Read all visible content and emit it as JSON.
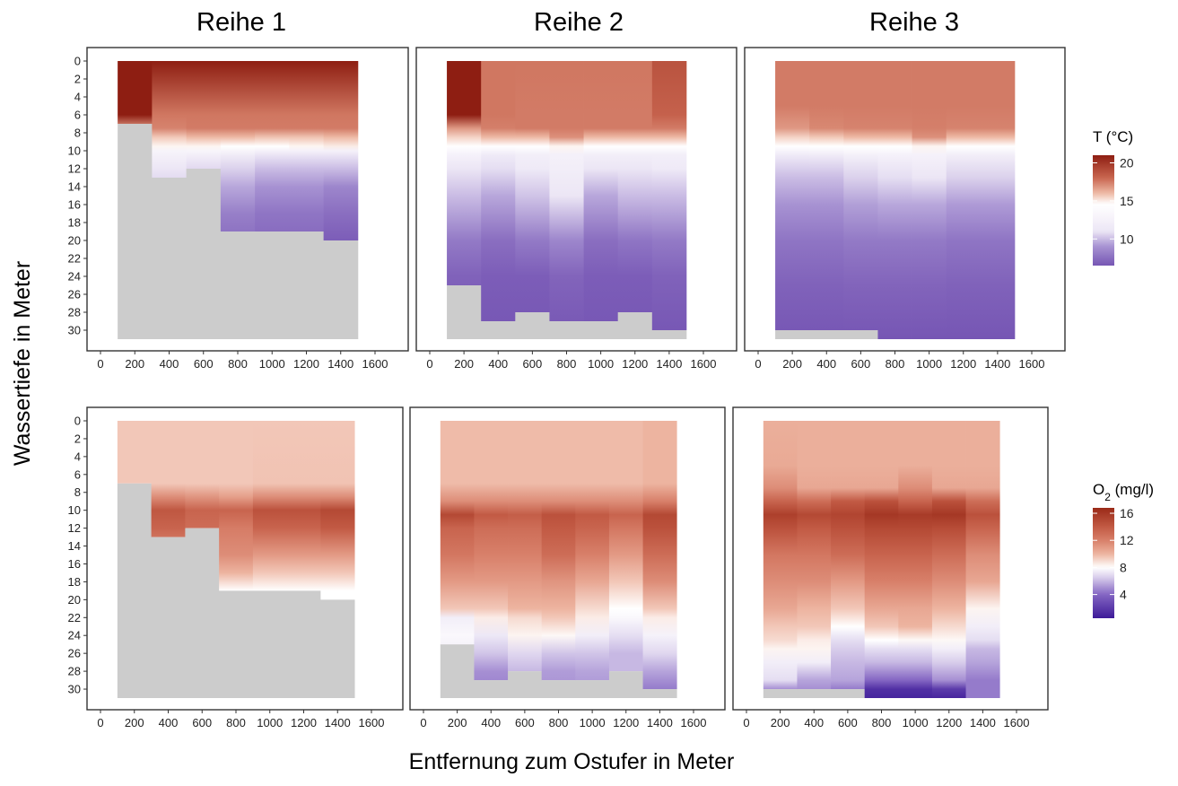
{
  "figure": {
    "facet_titles": [
      "Reihe 1",
      "Reihe 2",
      "Reihe 3"
    ],
    "xlabel": "Entfernung zum Ostufer in Meter",
    "ylabel": "Wassertiefe in Meter",
    "na_color": "#cccccc"
  },
  "chart_data": [
    {
      "type": "heatmap",
      "variable": "T",
      "unit": "°C",
      "facets": [
        "Reihe 1",
        "Reihe 2",
        "Reihe 3"
      ],
      "x_ticks": [
        0,
        200,
        400,
        600,
        800,
        1000,
        1200,
        1400,
        1600
      ],
      "y_ticks": [
        0,
        2,
        4,
        6,
        8,
        10,
        12,
        14,
        16,
        18,
        20,
        22,
        24,
        26,
        28,
        30
      ],
      "xlim": [
        0,
        1600
      ],
      "ylim": [
        0,
        31
      ],
      "y_reversed": true,
      "x_columns": [
        200,
        400,
        600,
        800,
        1000,
        1200,
        1400
      ],
      "column_width": 200,
      "legend": {
        "title": "T (°C)",
        "ticks": [
          20,
          15,
          10
        ],
        "range": [
          6.5,
          21
        ],
        "colors": [
          {
            "v": 6.5,
            "c": "#7656b4"
          },
          {
            "v": 9,
            "c": "#a792d2"
          },
          {
            "v": 11,
            "c": "#ece6f5"
          },
          {
            "v": 13,
            "c": "#f8f5fb"
          },
          {
            "v": 14.6,
            "c": "#ffffff"
          },
          {
            "v": 16,
            "c": "#eebaa6"
          },
          {
            "v": 18,
            "c": "#c96650"
          },
          {
            "v": 21,
            "c": "#8e1e12"
          }
        ]
      },
      "panels": [
        {
          "facet": "Reihe 1",
          "max_depth": [
            7,
            13,
            12,
            19,
            19,
            19,
            20
          ],
          "profile": [
            [
              0,
              21,
              21,
              21,
              21,
              21,
              21,
              21,
              21
            ],
            [
              6,
              21,
              21,
              17.6,
              17.6,
              17.6,
              17.6,
              17.6,
              17.6
            ],
            [
              7.5,
              21,
              16.8,
              17.3,
              17.5,
              17.5,
              17.5,
              17.5,
              17.5
            ],
            [
              8.5,
              21,
              15.5,
              15.7,
              16,
              16,
              15.8,
              15.8,
              16
            ],
            [
              9.5,
              21,
              14.6,
              14.8,
              14.8,
              14.6,
              14.6,
              14.8,
              15
            ],
            [
              10,
              21,
              12,
              12.8,
              13,
              12.8,
              12.5,
              12.5,
              12.5
            ],
            [
              12,
              21,
              10.5,
              11,
              10.7,
              10.5,
              10,
              10,
              10
            ],
            [
              14,
              21,
              10,
              10.5,
              10,
              9.5,
              9,
              9,
              8.5
            ],
            [
              17,
              21,
              9,
              10,
              8.6,
              8.2,
              7.8,
              7.8,
              7.5
            ],
            [
              20,
              21,
              9,
              9.5,
              7.8,
              7.5,
              7.3,
              7.3,
              6.8
            ],
            [
              31,
              21,
              8,
              8,
              7.5,
              7,
              7,
              7,
              6.5
            ]
          ]
        },
        {
          "facet": "Reihe 2",
          "max_depth": [
            25,
            29,
            28,
            29,
            29,
            28,
            30
          ],
          "profile": [
            [
              0,
              21,
              21,
              17.6,
              17.6,
              17.6,
              17.6,
              17.6,
              18.8
            ],
            [
              6,
              21,
              21,
              17.6,
              17.5,
              17.5,
              17.5,
              17.5,
              18.2
            ],
            [
              7.5,
              21,
              16.8,
              17.4,
              17.5,
              17.5,
              17.5,
              17.5,
              17.5
            ],
            [
              8.5,
              21,
              15.5,
              16,
              16,
              17,
              16,
              16,
              16
            ],
            [
              9.5,
              21,
              14.5,
              14.5,
              14.5,
              14.8,
              14.5,
              14.5,
              14.5
            ],
            [
              10.5,
              21,
              12.5,
              11.5,
              12,
              12.3,
              12,
              12,
              12
            ],
            [
              12,
              21,
              11,
              10.8,
              11.5,
              12,
              11,
              11,
              11.5
            ],
            [
              15,
              21,
              10,
              9.5,
              10.2,
              11,
              9.5,
              10,
              10
            ],
            [
              20,
              21,
              8,
              7.5,
              8,
              8.5,
              7.5,
              7.8,
              8
            ],
            [
              24,
              21,
              7,
              6.8,
              6.8,
              7.1,
              6.8,
              6.8,
              7
            ],
            [
              31,
              21,
              6.5,
              6.5,
              6.5,
              6.5,
              6.5,
              6.5,
              6.5
            ]
          ]
        },
        {
          "facet": "Reihe 3",
          "max_depth": [
            30,
            30,
            30,
            31,
            31,
            31,
            31
          ],
          "profile": [
            [
              0,
              17.5,
              17.5,
              17.5,
              17.5,
              17.5,
              17.5,
              17.5,
              17.5
            ],
            [
              5,
              17.5,
              17.5,
              17.5,
              17.5,
              17.5,
              17.5,
              17.5,
              17.5
            ],
            [
              7.5,
              17.5,
              16.8,
              17.2,
              17.3,
              17.3,
              17.4,
              17.3,
              17.3
            ],
            [
              8.5,
              17.5,
              15.5,
              15.7,
              16,
              16,
              17,
              16,
              16
            ],
            [
              9.5,
              17.5,
              14.5,
              14.6,
              14.6,
              14.6,
              14.8,
              14.6,
              14.6
            ],
            [
              10.5,
              17.5,
              11.5,
              11.7,
              12.3,
              12.5,
              12.5,
              12,
              12
            ],
            [
              13,
              17.5,
              10,
              10,
              10.5,
              10.8,
              11,
              10.5,
              10.5
            ],
            [
              16,
              17.5,
              9,
              9,
              9.3,
              9.5,
              9.5,
              9.2,
              9.2
            ],
            [
              20,
              17.5,
              7.8,
              7.8,
              8,
              8,
              8,
              7.8,
              7.8
            ],
            [
              25,
              17.5,
              7,
              7,
              7.1,
              7.1,
              7.1,
              7,
              7
            ],
            [
              31,
              17.5,
              6.5,
              6.5,
              6.5,
              6.5,
              6.5,
              6.5,
              6.5
            ]
          ]
        }
      ]
    },
    {
      "type": "heatmap",
      "variable": "O2",
      "unit": "mg/l",
      "facets": [
        "Reihe 1",
        "Reihe 2",
        "Reihe 3"
      ],
      "x_ticks": [
        0,
        200,
        400,
        600,
        800,
        1000,
        1200,
        1400,
        1600
      ],
      "y_ticks": [
        0,
        2,
        4,
        6,
        8,
        10,
        12,
        14,
        16,
        18,
        20,
        22,
        24,
        26,
        28,
        30
      ],
      "xlim": [
        0,
        1600
      ],
      "ylim": [
        0,
        31
      ],
      "y_reversed": true,
      "x_columns": [
        200,
        400,
        600,
        800,
        1000,
        1200,
        1400
      ],
      "column_width": 200,
      "legend": {
        "title_main": "O",
        "title_sub": "2",
        "title_rest": " (mg/l)",
        "ticks": [
          16,
          12,
          8,
          4
        ],
        "range": [
          0.5,
          16.8
        ],
        "colors": [
          {
            "v": 0.5,
            "c": "#3d1a98"
          },
          {
            "v": 4,
            "c": "#8466c3"
          },
          {
            "v": 6.5,
            "c": "#d8cdeb"
          },
          {
            "v": 8,
            "c": "#ffffff"
          },
          {
            "v": 10,
            "c": "#edb4a0"
          },
          {
            "v": 12,
            "c": "#d8806a"
          },
          {
            "v": 14,
            "c": "#c25a44"
          },
          {
            "v": 16.8,
            "c": "#9a2a18"
          }
        ]
      },
      "panels": [
        {
          "facet": "Reihe 1",
          "max_depth": [
            7,
            13,
            12,
            19,
            19,
            19,
            20
          ],
          "profile": [
            [
              0,
              9.5,
              9.5,
              9.5,
              9.5,
              9.5,
              9.5,
              9.5,
              9.5
            ],
            [
              7,
              9.5,
              9.5,
              9.5,
              9.5,
              9.5,
              9.6,
              9.6,
              9.6
            ],
            [
              8.5,
              9.5,
              12.5,
              11.5,
              11.2,
              10.8,
              11.5,
              11.5,
              11.5
            ],
            [
              10,
              9.5,
              14.8,
              14.2,
              13.5,
              13.5,
              14.5,
              14.5,
              15
            ],
            [
              12,
              9.5,
              14,
              13.5,
              13,
              12.2,
              13.5,
              13.5,
              14
            ],
            [
              15,
              9.5,
              12,
              11.5,
              11.5,
              11.5,
              11,
              11,
              11
            ],
            [
              17,
              9.5,
              10,
              10,
              10.5,
              10,
              9.5,
              9.5,
              9.5
            ],
            [
              19,
              9.5,
              8,
              8,
              8.5,
              8,
              8,
              8,
              8
            ],
            [
              31,
              9.5,
              8,
              8,
              8,
              8,
              8,
              8,
              8
            ]
          ]
        },
        {
          "facet": "Reihe 2",
          "max_depth": [
            25,
            29,
            28,
            29,
            29,
            28,
            30
          ],
          "profile": [
            [
              0,
              9.8,
              9.8,
              9.8,
              9.8,
              9.8,
              9.8,
              9.8,
              10
            ],
            [
              7,
              9.8,
              9.8,
              9.8,
              9.8,
              9.8,
              9.8,
              9.8,
              10
            ],
            [
              9,
              11.5,
              11.5,
              11.5,
              11.5,
              11.5,
              11.5,
              11.5,
              12
            ],
            [
              10.5,
              15,
              15,
              14,
              13.8,
              14.5,
              14,
              13.5,
              15
            ],
            [
              12,
              13.5,
              13.5,
              13,
              13,
              14,
              13.5,
              12.5,
              14.5
            ],
            [
              15,
              12.5,
              12.5,
              12,
              12,
              13,
              12,
              11,
              13
            ],
            [
              18,
              11,
              11,
              11,
              11,
              11.2,
              10.5,
              9.5,
              11.5
            ],
            [
              21,
              9.5,
              9.5,
              9.5,
              10,
              10,
              9,
              8,
              9.5
            ],
            [
              22,
              7.5,
              7.5,
              8.5,
              9,
              9.5,
              8.5,
              7.8,
              8.5
            ],
            [
              24,
              7.8,
              7.8,
              7.3,
              8.3,
              8.2,
              7.5,
              7,
              7.6
            ],
            [
              26,
              7.5,
              7.5,
              6.3,
              6.8,
              6.3,
              6.3,
              6,
              6.8
            ],
            [
              28,
              7.5,
              7.5,
              5,
              6,
              5.3,
              5.5,
              6,
              5.5
            ],
            [
              31,
              7.5,
              7.5,
              4.5,
              5.5,
              5,
              5,
              5.5,
              4
            ]
          ]
        },
        {
          "facet": "Reihe 3",
          "max_depth": [
            30,
            30,
            30,
            31,
            31,
            31,
            31
          ],
          "profile": [
            [
              0,
              10.2,
              10.2,
              10.2,
              10.2,
              10.2,
              10.2,
              10.2,
              10.2
            ],
            [
              5,
              10.2,
              10.4,
              10.2,
              10.2,
              10.2,
              10.2,
              10.2,
              10.2
            ],
            [
              7.5,
              10.2,
              11.5,
              10.5,
              10.5,
              10.5,
              11.5,
              10.5,
              10.5
            ],
            [
              9,
              10.2,
              13.5,
              13,
              14,
              14.5,
              13.5,
              14.5,
              13
            ],
            [
              10.5,
              10.2,
              15.5,
              15,
              15.2,
              16,
              15.8,
              16,
              14.5
            ],
            [
              12,
              10.2,
              14.5,
              14,
              14.5,
              15,
              15,
              14.8,
              13.5
            ],
            [
              15,
              10.2,
              12.5,
              12.5,
              13,
              13.5,
              13.5,
              13,
              11.5
            ],
            [
              18,
              10.2,
              11.5,
              11.5,
              11,
              12,
              12,
              11.5,
              10.5
            ],
            [
              21,
              10.2,
              10.5,
              10,
              9.5,
              10.5,
              10.5,
              10,
              8.3
            ],
            [
              23,
              10.2,
              9.5,
              9.5,
              8,
              9.5,
              10,
              9,
              7.5
            ],
            [
              24.5,
              10.2,
              9,
              8.5,
              7,
              8,
              8.2,
              8.2,
              7
            ],
            [
              25.5,
              10.2,
              8.3,
              8.3,
              6.5,
              7,
              7,
              7.5,
              6
            ],
            [
              27,
              10.2,
              7.5,
              7.5,
              6,
              6,
              6,
              6.5,
              5.5
            ],
            [
              29,
              10.2,
              7,
              5.5,
              5.5,
              4,
              4,
              5,
              4.5
            ],
            [
              30,
              10.2,
              5,
              5,
              4.5,
              1.5,
              1.5,
              2,
              4.5
            ],
            [
              31,
              10.2,
              5,
              5,
              4.5,
              1,
              1,
              1,
              4.5
            ]
          ]
        }
      ]
    }
  ]
}
